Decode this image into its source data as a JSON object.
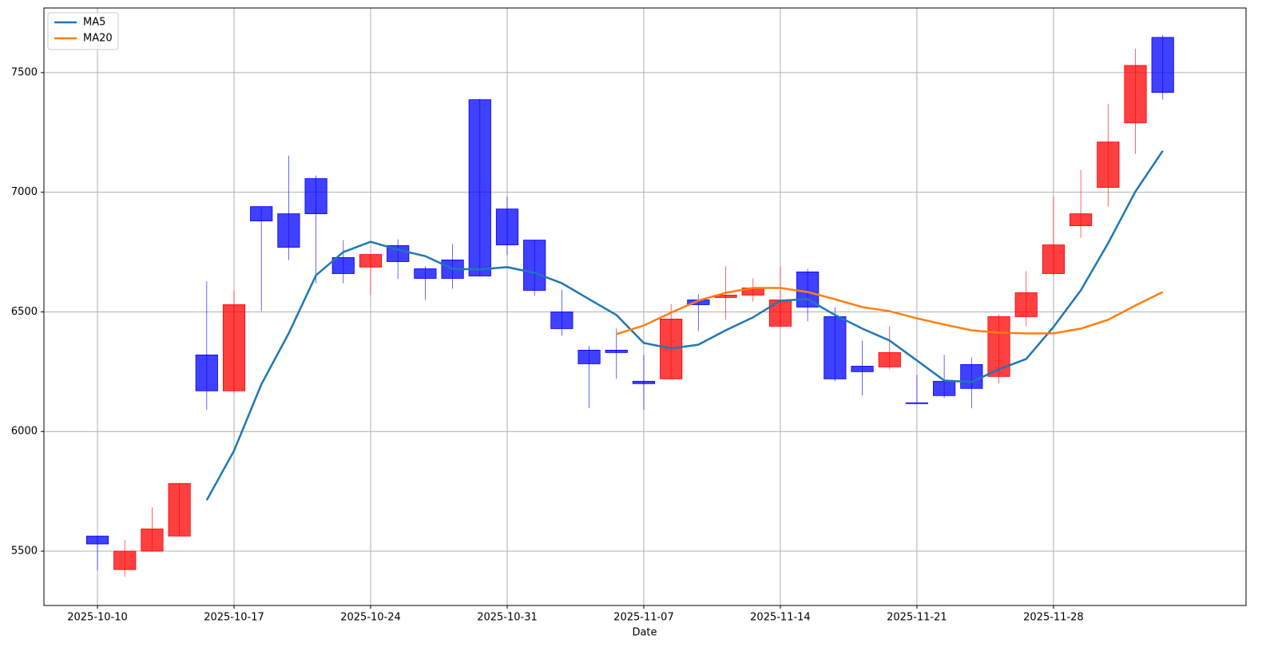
{
  "chart_data": {
    "type": "candlestick",
    "x_label": "Date",
    "categories": [
      "2025-10-10",
      null,
      null,
      null,
      null,
      "2025-10-17",
      null,
      null,
      null,
      null,
      "2025-10-24",
      null,
      null,
      null,
      null,
      "2025-10-31",
      null,
      null,
      null,
      null,
      "2025-11-07",
      null,
      null,
      null,
      null,
      "2025-11-14",
      null,
      null,
      null,
      null,
      "2025-11-21",
      null,
      null,
      null,
      null,
      "2025-11-28",
      null,
      null,
      null,
      null
    ],
    "open": [
      5563,
      5423,
      5500,
      5563,
      6320,
      6170,
      6940,
      6910,
      7057,
      6727,
      6687,
      6777,
      6680,
      6717,
      7387,
      6930,
      6800,
      6500,
      6340,
      6340,
      6210,
      6220,
      6550,
      6560,
      6570,
      6440,
      6667,
      6480,
      6273,
      6270,
      6120,
      6210,
      6280,
      6230,
      6480,
      6660,
      6860,
      7020,
      7290,
      7647
    ],
    "high": [
      5563,
      5547,
      5683,
      5783,
      6627,
      6587,
      6940,
      7153,
      7070,
      6800,
      6740,
      6803,
      6690,
      6783,
      7390,
      6980,
      6800,
      6593,
      6357,
      6430,
      6320,
      6533,
      6573,
      6690,
      6640,
      6690,
      6680,
      6520,
      6380,
      6440,
      6237,
      6320,
      6310,
      6490,
      6670,
      6980,
      7093,
      7370,
      7600,
      7657
    ],
    "low": [
      5420,
      5393,
      5500,
      5563,
      6090,
      6160,
      6503,
      6717,
      6620,
      6620,
      6570,
      6637,
      6550,
      6597,
      6650,
      6737,
      6567,
      6400,
      6097,
      6220,
      6090,
      6220,
      6420,
      6467,
      6543,
      6440,
      6460,
      6210,
      6150,
      6260,
      6117,
      6140,
      6097,
      6200,
      6440,
      6650,
      6810,
      6940,
      7160,
      7387
    ],
    "close": [
      5530,
      5500,
      5593,
      5783,
      6170,
      6530,
      6880,
      6770,
      6910,
      6660,
      6740,
      6710,
      6640,
      6640,
      6650,
      6780,
      6590,
      6430,
      6283,
      6330,
      6200,
      6470,
      6530,
      6570,
      6600,
      6550,
      6520,
      6220,
      6250,
      6330,
      6117,
      6150,
      6180,
      6480,
      6580,
      6780,
      6910,
      7210,
      7530,
      7417
    ],
    "up_color": "#ff0000",
    "down_color": "#0000ff",
    "series": [
      {
        "name": "MA5",
        "color": "#1f77b4",
        "values": [
          null,
          null,
          null,
          null,
          5713,
          5920,
          6197,
          6410,
          6653,
          6750,
          6793,
          6760,
          6733,
          6680,
          6677,
          6687,
          6663,
          6620,
          6553,
          6487,
          6370,
          6347,
          6363,
          6423,
          6477,
          6547,
          6553,
          6487,
          6430,
          6380,
          6297,
          6213,
          6207,
          6260,
          6303,
          6437,
          6590,
          6787,
          7003,
          7173
        ]
      },
      {
        "name": "MA20",
        "color": "#ff7f0e",
        "values": [
          null,
          null,
          null,
          null,
          null,
          null,
          null,
          null,
          null,
          null,
          null,
          null,
          null,
          null,
          null,
          null,
          null,
          null,
          null,
          6407,
          6443,
          6497,
          6547,
          6580,
          6600,
          6600,
          6583,
          6553,
          6520,
          6503,
          6473,
          6447,
          6423,
          6413,
          6410,
          6410,
          6430,
          6467,
          6527,
          6583
        ]
      }
    ],
    "ylim": [
      5273,
      7770
    ],
    "yticks": [
      5500,
      6000,
      6500,
      7000,
      7500
    ],
    "xlim": [
      -1.96,
      42.05
    ],
    "grid": true,
    "legend": "upper-left"
  }
}
